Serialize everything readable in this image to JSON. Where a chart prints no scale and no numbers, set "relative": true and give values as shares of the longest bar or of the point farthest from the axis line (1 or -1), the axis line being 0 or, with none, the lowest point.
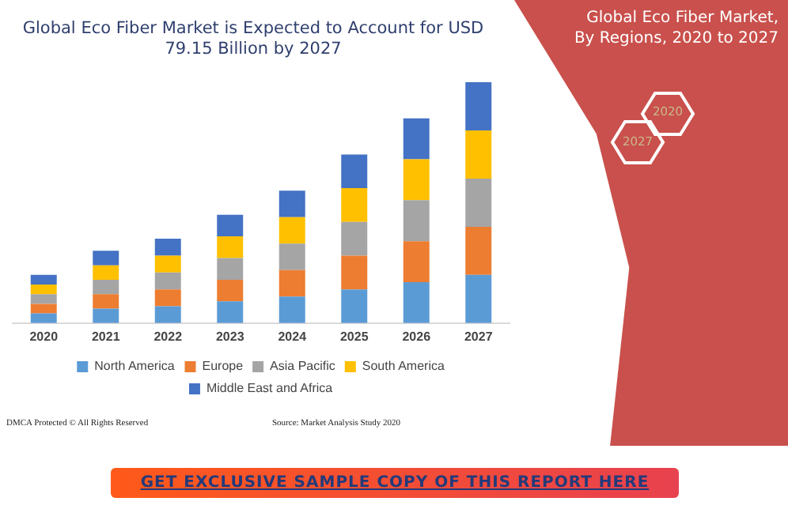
{
  "chart_data": {
    "type": "bar",
    "title": "Global Eco Fiber Market is Expected to Account for USD 79.15 Billion by 2027",
    "subtitle": "Global Eco Fiber Market, By Regions, 2020 to 2027",
    "categories": [
      "2020",
      "2021",
      "2022",
      "2023",
      "2024",
      "2025",
      "2026",
      "2027"
    ],
    "stacked": true,
    "relative": true,
    "legend": "bottom",
    "grid": false,
    "series": [
      {
        "name": "North America",
        "color": "#5b9bd5",
        "values": [
          0.04,
          0.06,
          0.07,
          0.09,
          0.11,
          0.14,
          0.17,
          0.2
        ]
      },
      {
        "name": "Europe",
        "color": "#ed7d31",
        "values": [
          0.04,
          0.06,
          0.07,
          0.09,
          0.11,
          0.14,
          0.17,
          0.2
        ]
      },
      {
        "name": "Asia Pacific",
        "color": "#a5a5a5",
        "values": [
          0.04,
          0.06,
          0.07,
          0.09,
          0.11,
          0.14,
          0.17,
          0.2
        ]
      },
      {
        "name": "South America",
        "color": "#ffc000",
        "values": [
          0.04,
          0.06,
          0.07,
          0.09,
          0.11,
          0.14,
          0.17,
          0.2
        ]
      },
      {
        "name": "Middle East and Africa",
        "color": "#4472c4",
        "values": [
          0.04,
          0.06,
          0.07,
          0.09,
          0.11,
          0.14,
          0.17,
          0.2
        ]
      }
    ],
    "annotations": [
      "2020",
      "2027",
      "DMCA Protected © All Rights Reserved",
      "Source: Market Analysis Study 2020",
      "GET EXCLUSIVE SAMPLE COPY OF THIS REPORT HERE"
    ]
  }
}
